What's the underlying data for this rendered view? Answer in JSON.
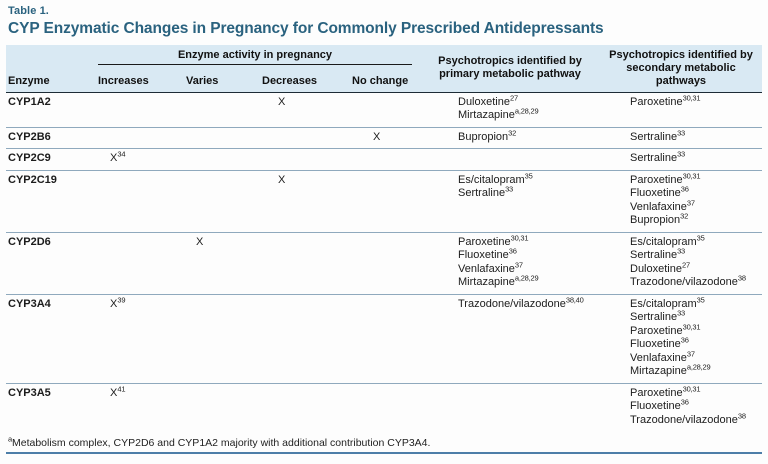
{
  "colors": {
    "title": "#2a627f",
    "header_band": "#d9e9f3",
    "row_rule": "#8fa9bd",
    "header_rule": "#1d2c36",
    "bottom_rule": "#4d7ea8"
  },
  "table": {
    "label": "Table 1.",
    "title": "CYP Enzymatic Changes in Pregnancy for Commonly Prescribed Antidepressants",
    "header": {
      "enzyme": "Enzyme",
      "activity_group": "Enzyme activity in pregnancy",
      "activity_cols": [
        "Increases",
        "Varies",
        "Decreases",
        "No change"
      ],
      "primary": "Psychotropics identified by primary metabolic pathway",
      "secondary": "Psychotropics identified by secondary metabolic pathways"
    },
    "rows": [
      {
        "enzyme": "CYP1A2",
        "increases": null,
        "varies": null,
        "decreases": {
          "mark": "X",
          "sup": ""
        },
        "no_change": null,
        "primary": [
          {
            "name": "Duloxetine",
            "sup": "27"
          },
          {
            "name": "Mirtazapine",
            "sup": "a,28,29"
          }
        ],
        "secondary": [
          {
            "name": "Paroxetine",
            "sup": "30,31"
          }
        ]
      },
      {
        "enzyme": "CYP2B6",
        "increases": null,
        "varies": null,
        "decreases": null,
        "no_change": {
          "mark": "X",
          "sup": ""
        },
        "primary": [
          {
            "name": "Bupropion",
            "sup": "32"
          }
        ],
        "secondary": [
          {
            "name": "Sertraline",
            "sup": "33"
          }
        ]
      },
      {
        "enzyme": "CYP2C9",
        "increases": {
          "mark": "X",
          "sup": "34"
        },
        "varies": null,
        "decreases": null,
        "no_change": null,
        "primary": [],
        "secondary": [
          {
            "name": "Sertraline",
            "sup": "33"
          }
        ]
      },
      {
        "enzyme": "CYP2C19",
        "increases": null,
        "varies": null,
        "decreases": {
          "mark": "X",
          "sup": ""
        },
        "no_change": null,
        "primary": [
          {
            "name": "Es/citalopram",
            "sup": "35"
          },
          {
            "name": "Sertraline",
            "sup": "33"
          }
        ],
        "secondary": [
          {
            "name": "Paroxetine",
            "sup": "30,31"
          },
          {
            "name": "Fluoxetine",
            "sup": "36"
          },
          {
            "name": "Venlafaxine",
            "sup": "37"
          },
          {
            "name": "Bupropion",
            "sup": "32"
          }
        ]
      },
      {
        "enzyme": "CYP2D6",
        "increases": null,
        "varies": {
          "mark": "X",
          "sup": ""
        },
        "decreases": null,
        "no_change": null,
        "primary": [
          {
            "name": "Paroxetine",
            "sup": "30,31"
          },
          {
            "name": "Fluoxetine",
            "sup": "36"
          },
          {
            "name": "Venlafaxine",
            "sup": "37"
          },
          {
            "name": "Mirtazapine",
            "sup": "a,28,29"
          }
        ],
        "secondary": [
          {
            "name": "Es/citalopram",
            "sup": "35"
          },
          {
            "name": "Sertraline",
            "sup": "33"
          },
          {
            "name": "Duloxetine",
            "sup": "27"
          },
          {
            "name": "Trazodone/vilazodone",
            "sup": "38"
          }
        ]
      },
      {
        "enzyme": "CYP3A4",
        "increases": {
          "mark": "X",
          "sup": "39"
        },
        "varies": null,
        "decreases": null,
        "no_change": null,
        "primary": [
          {
            "name": "Trazodone/vilazodone",
            "sup": "38,40"
          }
        ],
        "secondary": [
          {
            "name": "Es/citalopram",
            "sup": "35"
          },
          {
            "name": "Sertraline",
            "sup": "33"
          },
          {
            "name": "Paroxetine",
            "sup": "30,31"
          },
          {
            "name": "Fluoxetine",
            "sup": "36"
          },
          {
            "name": "Venlafaxine",
            "sup": "37"
          },
          {
            "name": "Mirtazapine",
            "sup": "a,28,29"
          }
        ]
      },
      {
        "enzyme": "CYP3A5",
        "increases": {
          "mark": "X",
          "sup": "41"
        },
        "varies": null,
        "decreases": null,
        "no_change": null,
        "primary": [],
        "secondary": [
          {
            "name": "Paroxetine",
            "sup": "30,31"
          },
          {
            "name": "Fluoxetine",
            "sup": "36"
          },
          {
            "name": "Trazodone/vilazodone",
            "sup": "38"
          }
        ]
      }
    ],
    "footnote": {
      "sup": "a",
      "text": "Metabolism complex, CYP2D6 and CYP1A2 majority with additional contribution CYP3A4."
    }
  }
}
